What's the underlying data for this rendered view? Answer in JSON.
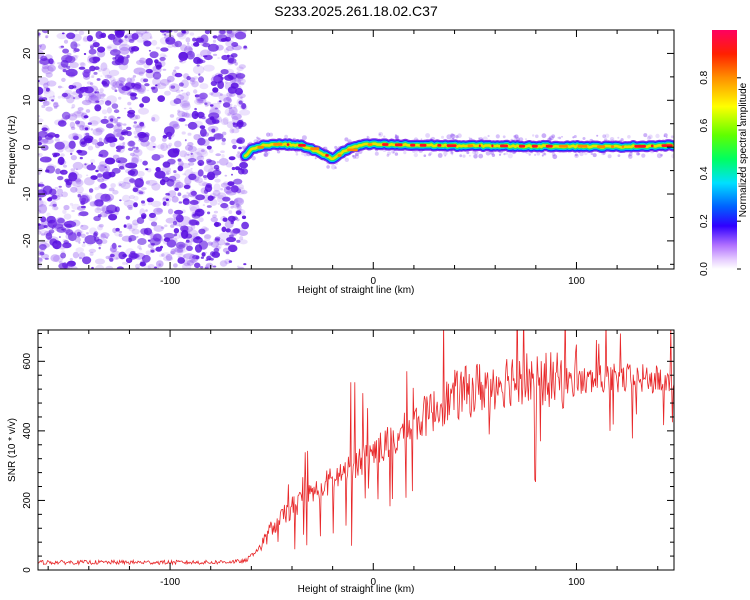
{
  "title": "S233.2025.261.18.02.C37",
  "colors": {
    "snr_line": "#e8282a",
    "scatter_low": "#8a4bf0",
    "scatter_high": "#5a10e0"
  },
  "chart_data": [
    {
      "type": "heatmap",
      "xlabel": "Height of straight line (km)",
      "ylabel": "Frequency (Hz)",
      "xlim": [
        -165,
        148
      ],
      "ylim": [
        -26,
        25
      ],
      "xticks": [
        -100,
        0,
        100
      ],
      "yticks": [
        -20,
        -10,
        0,
        10,
        20
      ],
      "noise_region_x": [
        -165,
        -63
      ],
      "signal_region_x": [
        -63,
        148
      ],
      "signal_track": {
        "x": [
          -63,
          -60,
          -55,
          -50,
          -45,
          -40,
          -35,
          -30,
          -25,
          -20,
          -15,
          -10,
          -5,
          0,
          10,
          20,
          30,
          40,
          50,
          60,
          70,
          80,
          90,
          100,
          110,
          120,
          130,
          140,
          148
        ],
        "y": [
          -2,
          -0.5,
          0.3,
          0.6,
          0.6,
          0.5,
          0.3,
          -0.5,
          -1.5,
          -2.5,
          -1.0,
          0.0,
          0.5,
          0.6,
          0.5,
          0.4,
          0.4,
          0.3,
          0.3,
          0.3,
          0.2,
          0.2,
          0.2,
          0.2,
          0.1,
          0.1,
          0.2,
          0.3,
          0.4
        ]
      },
      "colorbar": {
        "label": "Normalized spectral amplitude",
        "range": [
          0.0,
          1.0
        ],
        "ticks": [
          0.0,
          0.2,
          0.4,
          0.6,
          0.8
        ]
      }
    },
    {
      "type": "line",
      "xlabel": "Height of straight line (km)",
      "ylabel": "SNR (10 * v/v)",
      "xlim": [
        -165,
        148
      ],
      "ylim": [
        0,
        690
      ],
      "xticks": [
        -100,
        0,
        100
      ],
      "yticks": [
        0,
        200,
        400,
        600
      ],
      "series": [
        {
          "name": "SNR",
          "envelope_x": [
            -165,
            -120,
            -80,
            -63,
            -55,
            -50,
            -45,
            -40,
            -30,
            -20,
            -10,
            0,
            10,
            20,
            30,
            40,
            50,
            60,
            70,
            80,
            90,
            100,
            110,
            120,
            130,
            140,
            148
          ],
          "envelope_y": [
            22,
            22,
            22,
            25,
            70,
            120,
            150,
            180,
            220,
            260,
            300,
            340,
            370,
            420,
            460,
            500,
            520,
            540,
            555,
            550,
            545,
            540,
            545,
            550,
            550,
            545,
            550
          ]
        }
      ]
    }
  ]
}
